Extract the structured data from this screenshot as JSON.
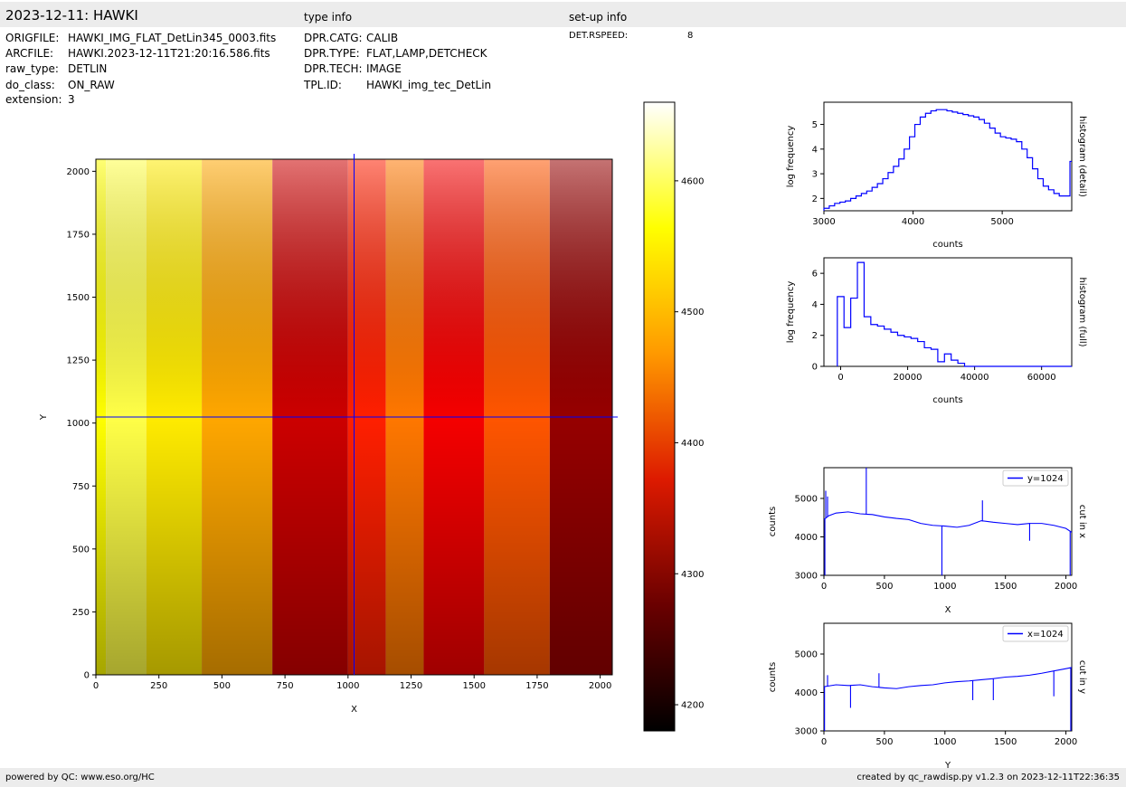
{
  "header": {
    "title": "2023-12-11: HAWKI",
    "type_info_label": "type info",
    "setup_info_label": "set-up info"
  },
  "fileinfo": [
    {
      "key": "ORIGFILE:",
      "value": "HAWKI_IMG_FLAT_DetLin345_0003.fits"
    },
    {
      "key": "ARCFILE:",
      "value": "HAWKI.2023-12-11T21:20:16.586.fits"
    },
    {
      "key": "raw_type:",
      "value": "DETLIN"
    },
    {
      "key": "do_class:",
      "value": "ON_RAW"
    },
    {
      "key": "extension:",
      "value": "3"
    }
  ],
  "typeinfo": [
    {
      "key": "DPR.CATG:",
      "value": "CALIB"
    },
    {
      "key": "DPR.TYPE:",
      "value": "FLAT,LAMP,DETCHECK"
    },
    {
      "key": "DPR.TECH:",
      "value": "IMAGE"
    },
    {
      "key": "TPL.ID:",
      "value": "HAWKI_img_tec_DetLin"
    }
  ],
  "setupinfo": [
    {
      "key": "DET.RSPEED:",
      "value": "8"
    }
  ],
  "footer": {
    "left": "powered by QC: www.eso.org/HC",
    "right": "created by qc_rawdisp.py v1.2.3 on 2023-12-11T22:36:35"
  },
  "colors": {
    "line": "#0000ff",
    "header_bg": "#ececec",
    "frame": "#000000"
  },
  "chart_data": [
    {
      "id": "image",
      "type": "heatmap",
      "xlabel": "X",
      "ylabel": "Y",
      "xlim": [
        0,
        2048
      ],
      "ylim": [
        0,
        2048
      ],
      "xticks": [
        0,
        250,
        500,
        750,
        1000,
        1250,
        1500,
        1750,
        2000
      ],
      "yticks": [
        0,
        250,
        500,
        750,
        1000,
        1250,
        1500,
        1750,
        2000
      ],
      "crosshair": {
        "x": 1024,
        "y": 1024
      },
      "colormap": "hot",
      "colorbar": {
        "range": [
          4180,
          4660
        ],
        "ticks": [
          4200,
          4300,
          4400,
          4500,
          4600
        ]
      },
      "column_levels": [
        {
          "x_from": 0,
          "x_to": 40,
          "level": 0.75
        },
        {
          "x_from": 40,
          "x_to": 200,
          "level": 0.82
        },
        {
          "x_from": 200,
          "x_to": 420,
          "level": 0.72
        },
        {
          "x_from": 420,
          "x_to": 700,
          "level": 0.62
        },
        {
          "x_from": 700,
          "x_to": 1000,
          "level": 0.3
        },
        {
          "x_from": 1000,
          "x_to": 1150,
          "level": 0.42
        },
        {
          "x_from": 1150,
          "x_to": 1300,
          "level": 0.55
        },
        {
          "x_from": 1300,
          "x_to": 1540,
          "level": 0.36
        },
        {
          "x_from": 1540,
          "x_to": 1800,
          "level": 0.5
        },
        {
          "x_from": 1800,
          "x_to": 2048,
          "level": 0.22
        }
      ]
    },
    {
      "id": "hist_detail",
      "type": "line",
      "xlabel": "counts",
      "ylabel": "log frequency",
      "side_label": "histogram (detail)",
      "xlim": [
        3000,
        5780
      ],
      "ylim": [
        1.5,
        5.9
      ],
      "xticks": [
        3000,
        4000,
        5000
      ],
      "yticks": [
        2,
        3,
        4,
        5
      ],
      "x": [
        3000,
        3060,
        3120,
        3180,
        3240,
        3300,
        3360,
        3420,
        3480,
        3540,
        3600,
        3660,
        3720,
        3780,
        3840,
        3900,
        3960,
        4020,
        4080,
        4140,
        4200,
        4260,
        4320,
        4380,
        4440,
        4500,
        4560,
        4620,
        4680,
        4740,
        4800,
        4860,
        4920,
        4980,
        5040,
        5100,
        5160,
        5220,
        5280,
        5340,
        5400,
        5460,
        5520,
        5580,
        5640,
        5700,
        5760
      ],
      "y": [
        1.6,
        1.7,
        1.8,
        1.85,
        1.9,
        2.0,
        2.1,
        2.2,
        2.3,
        2.45,
        2.6,
        2.8,
        3.05,
        3.3,
        3.6,
        4.0,
        4.5,
        5.0,
        5.3,
        5.45,
        5.55,
        5.6,
        5.6,
        5.55,
        5.5,
        5.45,
        5.4,
        5.35,
        5.3,
        5.2,
        5.05,
        4.85,
        4.65,
        4.5,
        4.45,
        4.4,
        4.3,
        4.0,
        3.65,
        3.2,
        2.8,
        2.5,
        2.35,
        2.2,
        2.1,
        2.1,
        3.5
      ]
    },
    {
      "id": "hist_full",
      "type": "line",
      "xlabel": "counts",
      "ylabel": "log frequency",
      "side_label": "histogram (full)",
      "xlim": [
        -5000,
        69000
      ],
      "ylim": [
        0,
        7
      ],
      "xticks": [
        0,
        20000,
        40000,
        60000
      ],
      "yticks": [
        0,
        2,
        4,
        6
      ],
      "x": [
        -1000,
        1000,
        3000,
        5000,
        7000,
        9000,
        11000,
        13000,
        15000,
        17000,
        19000,
        21000,
        23000,
        25000,
        27000,
        29000,
        31000,
        33000,
        35000,
        37000,
        69000
      ],
      "y": [
        4.5,
        2.5,
        4.4,
        6.7,
        3.2,
        2.7,
        2.6,
        2.4,
        2.2,
        2.0,
        1.9,
        1.8,
        1.6,
        1.2,
        1.1,
        0.3,
        0.8,
        0.4,
        0.2,
        0.0,
        0.0
      ]
    },
    {
      "id": "cut_x",
      "type": "line",
      "xlabel": "X",
      "ylabel": "counts",
      "side_label": "cut in x",
      "legend": "y=1024",
      "legend_position": "top-right",
      "xlim": [
        0,
        2048
      ],
      "ylim": [
        3000,
        5800
      ],
      "xticks": [
        0,
        500,
        1000,
        1500,
        2000
      ],
      "yticks": [
        3000,
        4000,
        5000
      ],
      "x": [
        0,
        40,
        100,
        200,
        300,
        400,
        500,
        600,
        700,
        800,
        900,
        1000,
        1100,
        1200,
        1300,
        1400,
        1500,
        1600,
        1700,
        1800,
        1900,
        2000,
        2048
      ],
      "y": [
        4450,
        4550,
        4620,
        4650,
        4600,
        4580,
        4520,
        4480,
        4450,
        4350,
        4300,
        4280,
        4250,
        4300,
        4420,
        4380,
        4350,
        4320,
        4350,
        4350,
        4300,
        4220,
        4120
      ],
      "spikes": [
        {
          "x": 8,
          "y": 3000
        },
        {
          "x": 15,
          "y": 5200
        },
        {
          "x": 30,
          "y": 5050
        },
        {
          "x": 350,
          "y": 5800
        },
        {
          "x": 975,
          "y": 3000
        },
        {
          "x": 1310,
          "y": 4950
        },
        {
          "x": 1700,
          "y": 3900
        },
        {
          "x": 2035,
          "y": 3000
        }
      ]
    },
    {
      "id": "cut_y",
      "type": "line",
      "xlabel": "Y",
      "ylabel": "counts",
      "side_label": "cut in y",
      "legend": "x=1024",
      "legend_position": "top-right",
      "xlim": [
        0,
        2048
      ],
      "ylim": [
        3000,
        5800
      ],
      "xticks": [
        0,
        500,
        1000,
        1500,
        2000
      ],
      "yticks": [
        3000,
        4000,
        5000
      ],
      "x": [
        0,
        100,
        200,
        300,
        400,
        500,
        600,
        700,
        800,
        900,
        1000,
        1100,
        1200,
        1300,
        1400,
        1500,
        1600,
        1700,
        1800,
        1900,
        2000,
        2048
      ],
      "y": [
        4150,
        4200,
        4180,
        4200,
        4150,
        4120,
        4100,
        4150,
        4180,
        4200,
        4250,
        4280,
        4300,
        4330,
        4360,
        4400,
        4420,
        4450,
        4500,
        4560,
        4620,
        4650
      ],
      "spikes": [
        {
          "x": 5,
          "y": 3000
        },
        {
          "x": 30,
          "y": 4450
        },
        {
          "x": 220,
          "y": 3600
        },
        {
          "x": 455,
          "y": 4500
        },
        {
          "x": 1230,
          "y": 3800
        },
        {
          "x": 1400,
          "y": 3800
        },
        {
          "x": 1900,
          "y": 3900
        },
        {
          "x": 2040,
          "y": 3000
        }
      ]
    }
  ]
}
